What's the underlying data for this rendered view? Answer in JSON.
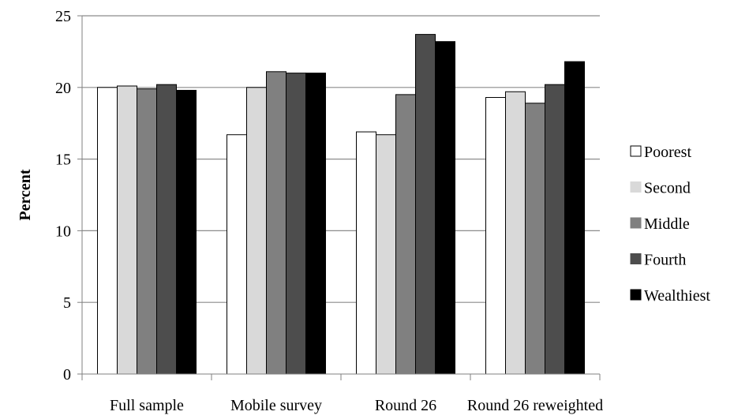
{
  "chart_data": {
    "type": "bar",
    "title": "",
    "xlabel": "",
    "ylabel": "Percent",
    "ylim": [
      0,
      25
    ],
    "yticks": [
      "0",
      "5",
      "10",
      "15",
      "20",
      "25"
    ],
    "grid": true,
    "legend_position": "right",
    "categories": [
      "Full sample",
      "Mobile survey",
      "Round 26",
      "Round 26 reweighted"
    ],
    "series": [
      {
        "name": "Poorest",
        "color": "#ffffff",
        "values": [
          20.0,
          16.7,
          16.9,
          19.3
        ]
      },
      {
        "name": "Second",
        "color": "#d9d9d9",
        "values": [
          20.1,
          20.0,
          16.7,
          19.7
        ]
      },
      {
        "name": "Middle",
        "color": "#808080",
        "values": [
          19.9,
          21.1,
          19.5,
          18.9
        ]
      },
      {
        "name": "Fourth",
        "color": "#4d4d4d",
        "values": [
          20.2,
          21.0,
          23.7,
          20.2
        ]
      },
      {
        "name": "Wealthiest",
        "color": "#000000",
        "values": [
          19.8,
          21.0,
          23.2,
          21.8
        ]
      }
    ]
  }
}
